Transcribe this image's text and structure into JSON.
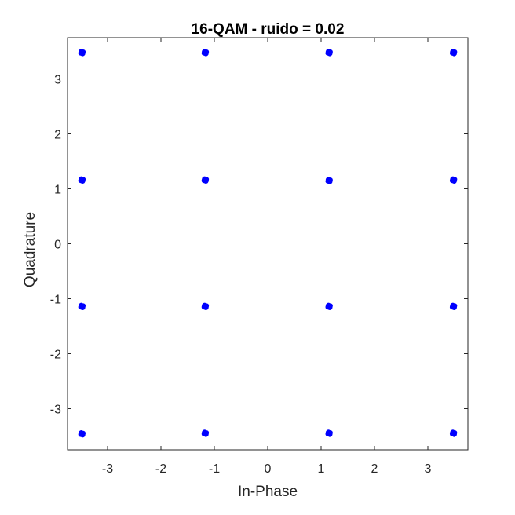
{
  "chart_data": {
    "type": "scatter",
    "title": "16-QAM - ruido = 0.02",
    "xlabel": "In-Phase",
    "ylabel": "Quadrature",
    "xlim": [
      -3.75,
      3.75
    ],
    "ylim": [
      -3.75,
      3.75
    ],
    "xticks": [
      -3,
      -2,
      -1,
      0,
      1,
      2,
      3
    ],
    "yticks": [
      -3,
      -2,
      -1,
      0,
      1,
      2,
      3
    ],
    "grid": false,
    "series": [
      {
        "color": "#0000ff",
        "points": [
          [
            -3.48,
            3.48
          ],
          [
            -1.17,
            3.48
          ],
          [
            1.15,
            3.48
          ],
          [
            3.48,
            3.48
          ],
          [
            -3.48,
            1.16
          ],
          [
            -1.17,
            1.16
          ],
          [
            1.15,
            1.15
          ],
          [
            3.48,
            1.16
          ],
          [
            -3.48,
            -1.14
          ],
          [
            -1.17,
            -1.14
          ],
          [
            1.15,
            -1.14
          ],
          [
            3.48,
            -1.14
          ],
          [
            -3.48,
            -3.46
          ],
          [
            -1.17,
            -3.45
          ],
          [
            1.15,
            -3.45
          ],
          [
            3.48,
            -3.45
          ]
        ]
      }
    ]
  }
}
